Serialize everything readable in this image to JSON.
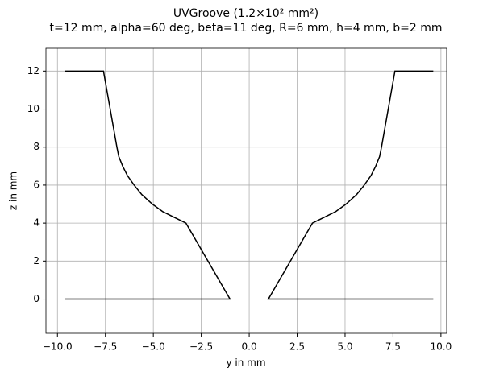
{
  "chart_data": {
    "type": "line",
    "title": "UVGroove (1.2×10² mm²)",
    "subtitle": "t=12 mm, alpha=60 deg, beta=11 deg, R=6 mm, h=4 mm, b=2 mm",
    "xlabel": "y in mm",
    "ylabel": "z in mm",
    "xlim": [
      -10.6,
      10.3
    ],
    "ylim": [
      -1.8,
      13.2
    ],
    "xticks": [
      {
        "value": -10,
        "label": "−10.0"
      },
      {
        "value": -7.5,
        "label": "−7.5"
      },
      {
        "value": -5,
        "label": "−5.0"
      },
      {
        "value": -2.5,
        "label": "−2.5"
      },
      {
        "value": 0,
        "label": "0.0"
      },
      {
        "value": 2.5,
        "label": "2.5"
      },
      {
        "value": 5,
        "label": "5.0"
      },
      {
        "value": 7.5,
        "label": "7.5"
      },
      {
        "value": 10,
        "label": "10.0"
      }
    ],
    "yticks": [
      0,
      2,
      4,
      6,
      8,
      10,
      12
    ],
    "grid": true,
    "series": [
      {
        "color": "#000000",
        "x": [
          -9.6,
          -7.6,
          -6.9,
          -6.8,
          -6.6,
          -6.35,
          -6.0,
          -5.6,
          -5.05,
          -4.5,
          -3.9,
          -3.3,
          -1.0,
          -9.6
        ],
        "values": [
          12,
          12,
          8,
          7.5,
          7,
          6.5,
          6,
          5.5,
          5,
          4.6,
          4.3,
          4,
          0,
          0
        ]
      },
      {
        "color": "#000000",
        "x": [
          9.6,
          7.6,
          6.9,
          6.8,
          6.6,
          6.35,
          6.0,
          5.6,
          5.05,
          4.5,
          3.9,
          3.3,
          1.0,
          9.6
        ],
        "values": [
          12,
          12,
          8,
          7.5,
          7,
          6.5,
          6,
          5.5,
          5,
          4.6,
          4.3,
          4,
          0,
          0
        ]
      }
    ]
  }
}
